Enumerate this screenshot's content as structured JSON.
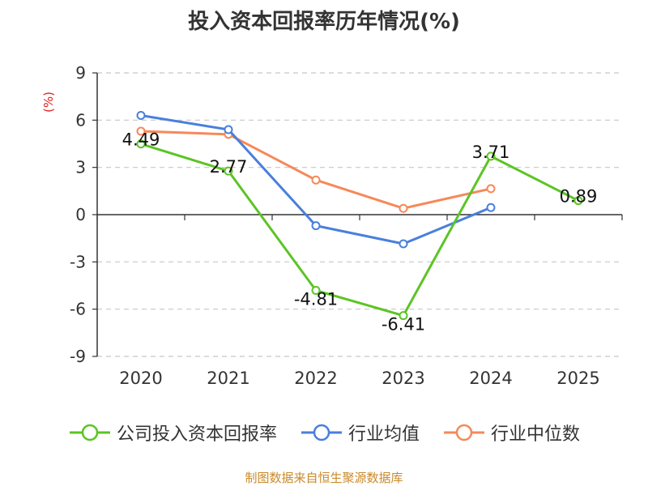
{
  "title": "投入资本回报率历年情况(%)",
  "source": "制图数据来自恒生聚源数据库",
  "colors": {
    "company": "#5cc425",
    "industry_avg": "#4a7fdc",
    "industry_median": "#f5895a",
    "unit": "#e0201b"
  },
  "chart_data": {
    "type": "line",
    "title": "投入资本回报率历年情况(%)",
    "ylabel": "(%)",
    "xlabel": "",
    "categories": [
      "2020",
      "2021",
      "2022",
      "2023",
      "2024",
      "2025"
    ],
    "ylim": [
      -9,
      9
    ],
    "yticks": [
      9,
      6,
      3,
      0,
      -3,
      -6,
      -9
    ],
    "ytick_labels": [
      "9",
      "6",
      "3",
      "0",
      "-3",
      "-6",
      "-9"
    ],
    "grid": true,
    "legend_position": "bottom",
    "series": [
      {
        "name": "公司投入资本回报率",
        "color_key": "company",
        "values": [
          4.49,
          2.77,
          -4.81,
          -6.41,
          3.71,
          0.89
        ],
        "data_labels": [
          "4.49",
          "2.77",
          "-4.81",
          "-6.41",
          "3.71",
          "0.89"
        ]
      },
      {
        "name": "行业均值",
        "color_key": "industry_avg",
        "values": [
          6.3,
          5.4,
          -0.7,
          -1.85,
          0.45,
          null
        ]
      },
      {
        "name": "行业中位数",
        "color_key": "industry_median",
        "values": [
          5.3,
          5.1,
          2.2,
          0.4,
          1.65,
          null
        ]
      }
    ]
  }
}
